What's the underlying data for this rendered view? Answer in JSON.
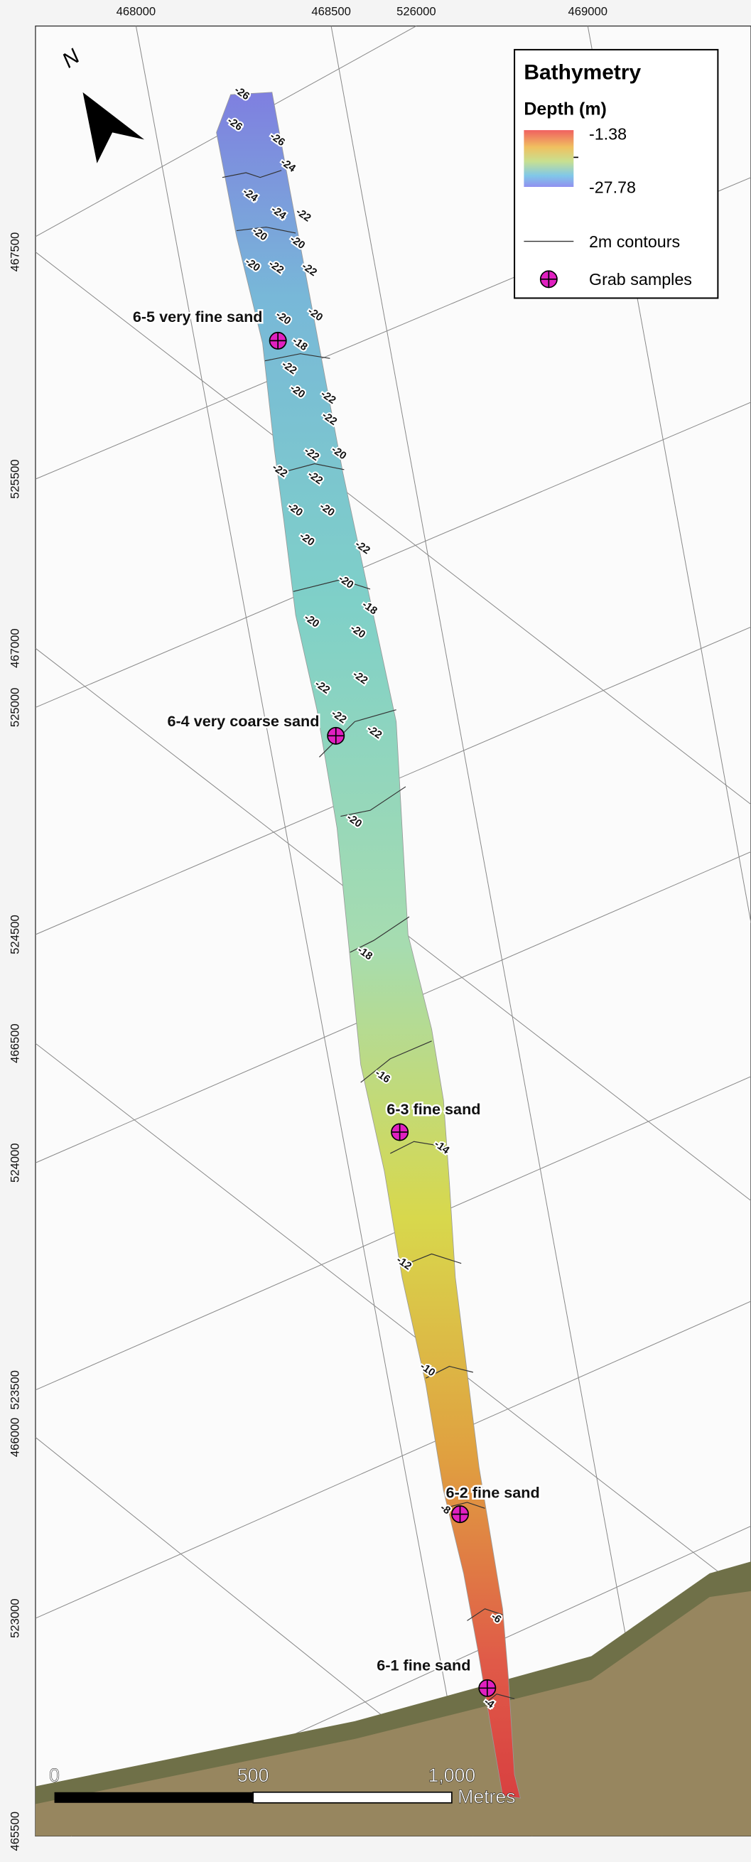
{
  "map": {
    "north": "N",
    "top_axis": [
      "468000",
      "468500",
      "526000",
      "469000"
    ],
    "left_axis": [
      "467500",
      "525500",
      "467000",
      "525000",
      "524500",
      "466500",
      "524000",
      "523500",
      "466000",
      "523000",
      "465500"
    ],
    "legend": {
      "title": "Bathymetry",
      "subtitle": "Depth (m)",
      "max": "-1.38",
      "min": "-27.78",
      "contours": "2m contours",
      "samples": "Grab samples"
    },
    "samples": [
      "6-5 very fine sand",
      "6-4 very coarse sand",
      "6-3 fine sand",
      "6-2 fine sand",
      "6-1 fine sand"
    ],
    "contour_labels": [
      "-26",
      "-26",
      "-26",
      "-24",
      "-24",
      "-24",
      "-22",
      "-20",
      "-20",
      "-22",
      "-22",
      "-20",
      "-20",
      "-18",
      "-20",
      "-22",
      "-20",
      "-22",
      "-22",
      "-20",
      "-22",
      "-22",
      "-22",
      "-20",
      "-20",
      "-20",
      "-22",
      "-18",
      "-20",
      "-20",
      "-20",
      "-22",
      "-22",
      "-22",
      "-22",
      "-20",
      "-18",
      "-16",
      "-14",
      "-12",
      "-10",
      "-8",
      "-6",
      "-4"
    ],
    "scale_bar": [
      "0",
      "500",
      "1,000",
      "Metres"
    ]
  }
}
